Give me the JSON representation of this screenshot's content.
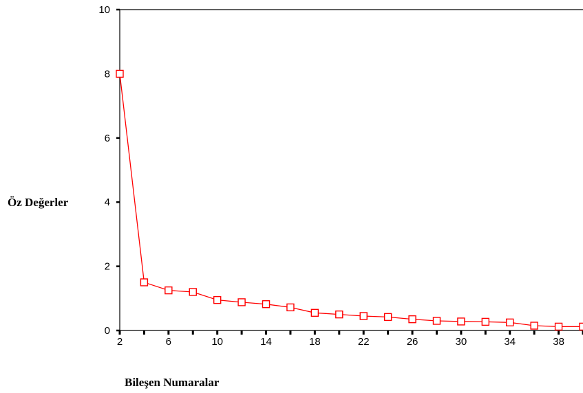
{
  "chart_data": {
    "type": "line",
    "title": "",
    "xlabel": "Bileşen Numaralar",
    "ylabel": "Öz Değerler",
    "xlim": [
      2,
      40
    ],
    "ylim": [
      0,
      10
    ],
    "x_ticks": [
      2,
      6,
      10,
      14,
      18,
      22,
      26,
      30,
      34,
      38
    ],
    "y_ticks": [
      0,
      2,
      4,
      6,
      8,
      10
    ],
    "grid": false,
    "legend": "none",
    "series": [
      {
        "color": "#ff0000",
        "marker": "open-square",
        "x": [
          2,
          4,
          6,
          8,
          10,
          12,
          14,
          16,
          18,
          20,
          22,
          24,
          26,
          28,
          30,
          32,
          34,
          36,
          38,
          40
        ],
        "y": [
          8.0,
          1.5,
          1.25,
          1.2,
          0.95,
          0.88,
          0.82,
          0.72,
          0.55,
          0.5,
          0.45,
          0.42,
          0.35,
          0.3,
          0.28,
          0.27,
          0.25,
          0.15,
          0.12,
          0.12
        ]
      }
    ]
  }
}
